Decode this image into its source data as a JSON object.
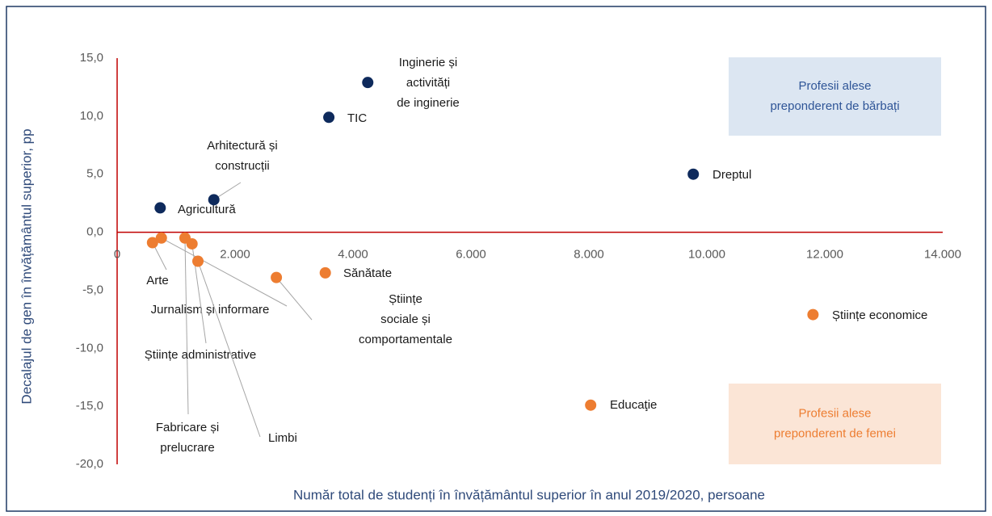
{
  "chart_data": {
    "type": "scatter",
    "x_label": "Număr total de studenți în învățământul superior în anul 2019/2020, persoane",
    "y_label": "Decalajul de gen în învățământul superior, pp",
    "xlim": [
      0,
      14000
    ],
    "ylim": [
      -20,
      15
    ],
    "xticks": [
      0,
      {
        "value": 2000,
        "label": "2.000"
      },
      {
        "value": 4000,
        "label": "4.000"
      },
      {
        "value": 6000,
        "label": "6.000"
      },
      {
        "value": 8000,
        "label": "8.000"
      },
      {
        "value": 10000,
        "label": "10.000"
      },
      {
        "value": 12000,
        "label": "12.000"
      },
      {
        "value": 14000,
        "label": "14.000"
      }
    ],
    "yticks": [
      {
        "value": 15,
        "label": "15,0"
      },
      {
        "value": 10,
        "label": "10,0"
      },
      {
        "value": 5,
        "label": "5,0"
      },
      {
        "value": 0,
        "label": "0,0"
      },
      {
        "value": -5,
        "label": "-5,0"
      },
      {
        "value": -10,
        "label": "-10,0"
      },
      {
        "value": -15,
        "label": "-15,0"
      },
      {
        "value": -20,
        "label": "-20,0"
      }
    ],
    "grid": false,
    "series": [
      {
        "color": "#0e2a5c",
        "x": [
          4250,
          3590,
          9770,
          1640,
          730
        ],
        "values": [
          12.9,
          9.9,
          5.0,
          2.8,
          2.1
        ],
        "labels": [
          [
            "Inginerie și",
            "activități",
            "de inginerie"
          ],
          [
            "TIC"
          ],
          [
            "Dreptul"
          ],
          [
            "Arhitectură și",
            "construcții"
          ],
          [
            "Agricultură"
          ]
        ]
      },
      {
        "color": "#ed7d31",
        "x": [
          600,
          750,
          1150,
          1270,
          1370,
          2700,
          3530,
          11800,
          8030
        ],
        "values": [
          -0.9,
          -0.5,
          -0.5,
          -1.0,
          -2.5,
          -3.9,
          -3.5,
          -7.1,
          -14.9
        ],
        "labels": [
          [
            "Arte"
          ],
          [
            "Jurnalism și informare"
          ],
          [
            "Fabricare și",
            "prelucrare"
          ],
          [
            "Științe administrative"
          ],
          [
            "Limbi"
          ],
          [
            "Științe",
            "sociale și",
            "comportamentale"
          ],
          [
            "Sănătate"
          ],
          [
            "Științe economice"
          ],
          [
            "Educaţie"
          ]
        ]
      }
    ],
    "annotations": [
      {
        "lines": [
          "Profesii alese",
          "preponderent de bărbați"
        ]
      },
      {
        "lines": [
          "Profesii alese",
          "preponderent de femei"
        ]
      }
    ]
  }
}
